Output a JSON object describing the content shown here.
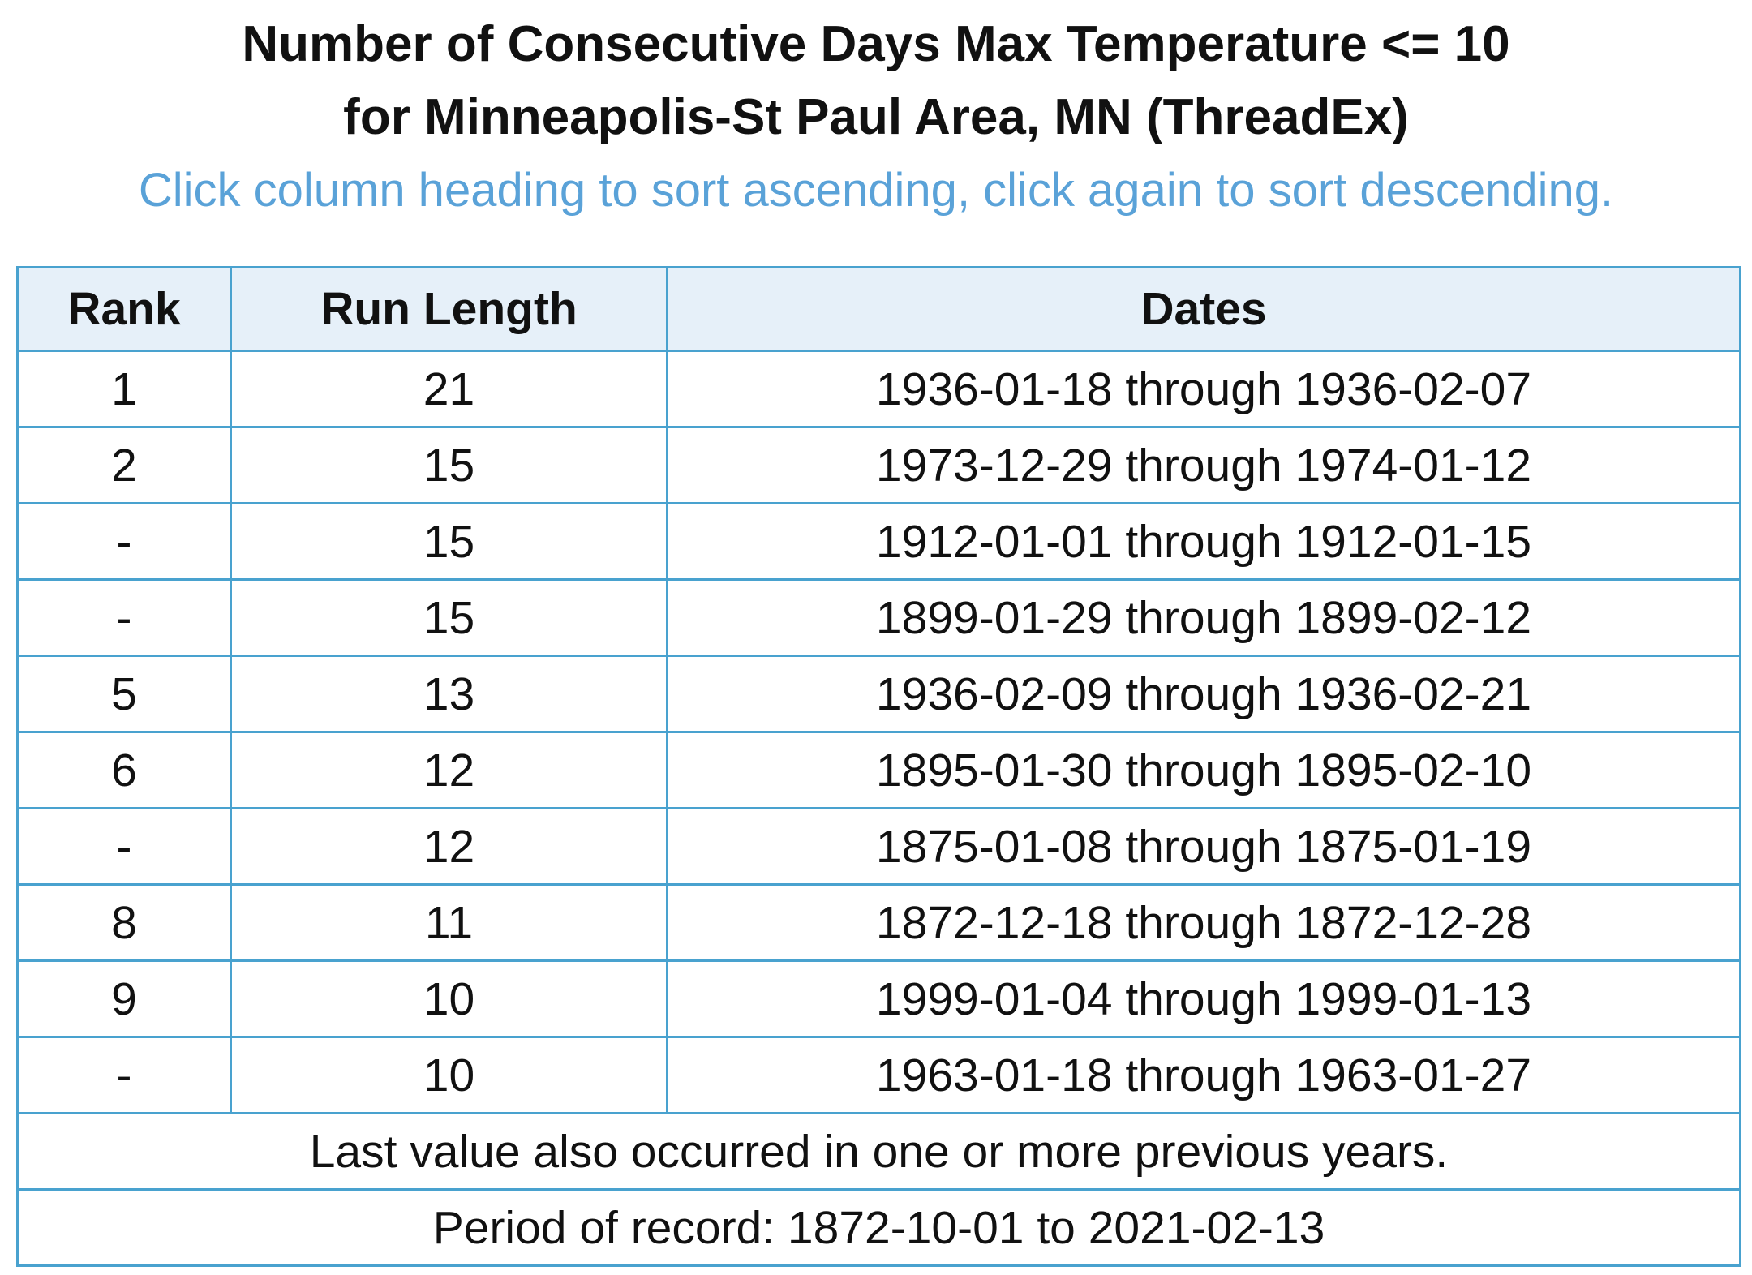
{
  "title_line1": "Number of Consecutive Days Max Temperature <= 10",
  "title_line2": "for Minneapolis-St Paul Area, MN (ThreadEx)",
  "instructions": "Click column heading to sort ascending, click again to sort descending.",
  "columns": [
    "Rank",
    "Run Length",
    "Dates"
  ],
  "rows": [
    {
      "rank": "1",
      "run": "21",
      "dates": "1936-01-18 through 1936-02-07"
    },
    {
      "rank": "2",
      "run": "15",
      "dates": "1973-12-29 through 1974-01-12"
    },
    {
      "rank": "-",
      "run": "15",
      "dates": "1912-01-01 through 1912-01-15"
    },
    {
      "rank": "-",
      "run": "15",
      "dates": "1899-01-29 through 1899-02-12"
    },
    {
      "rank": "5",
      "run": "13",
      "dates": "1936-02-09 through 1936-02-21"
    },
    {
      "rank": "6",
      "run": "12",
      "dates": "1895-01-30 through 1895-02-10"
    },
    {
      "rank": "-",
      "run": "12",
      "dates": "1875-01-08 through 1875-01-19"
    },
    {
      "rank": "8",
      "run": "11",
      "dates": "1872-12-18 through 1872-12-28"
    },
    {
      "rank": "9",
      "run": "10",
      "dates": "1999-01-04 through 1999-01-13"
    },
    {
      "rank": "-",
      "run": "10",
      "dates": "1963-01-18 through 1963-01-27"
    }
  ],
  "footnote": "Last value also occurred in one or more previous years.",
  "period": "Period of record: 1872-10-01 to 2021-02-13"
}
